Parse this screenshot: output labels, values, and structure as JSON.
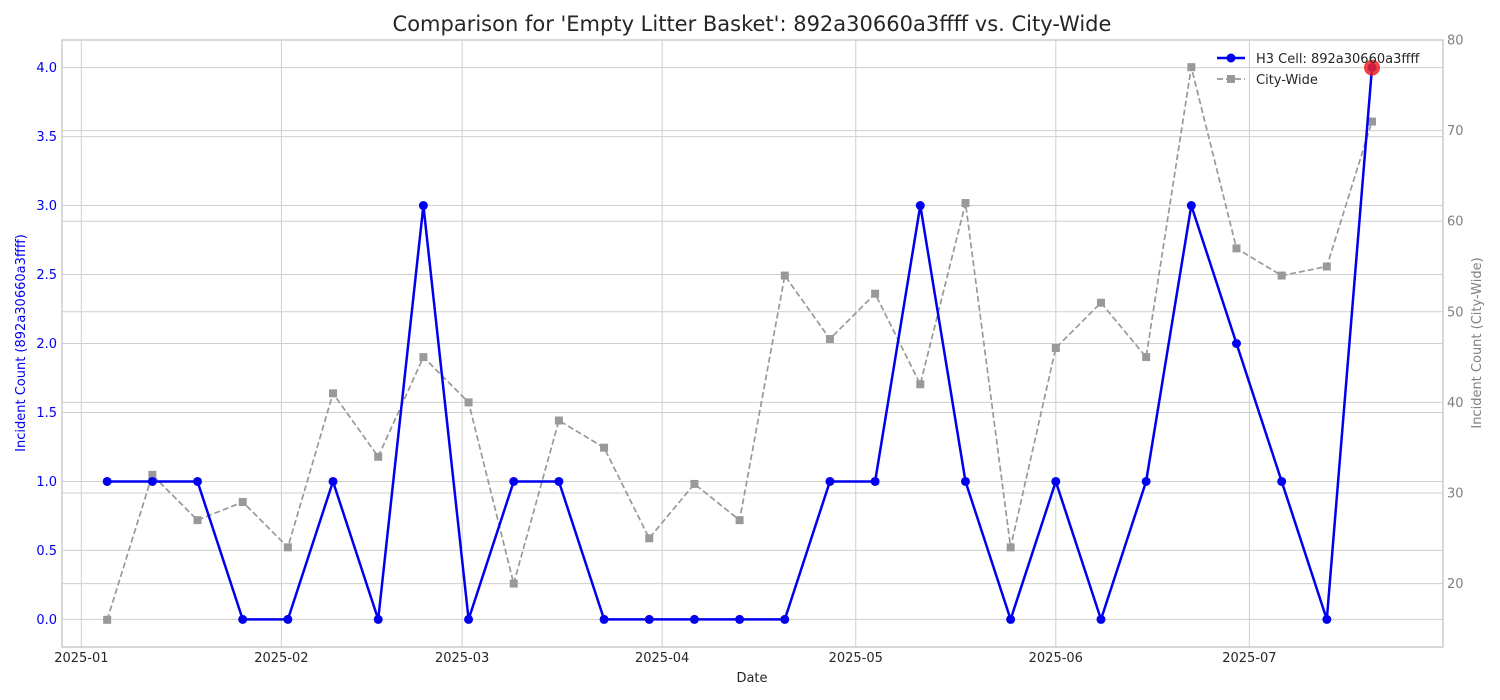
{
  "chart_data": {
    "type": "line",
    "title": "Comparison for 'Empty Litter Basket': 892a30660a3ffff vs. City-Wide",
    "xlabel": "Date",
    "ylabel_left": "Incident Count (892a30660a3ffff)",
    "ylabel_right": "Incident Count (City-Wide)",
    "x_ticks": [
      "2025-01",
      "2025-02",
      "2025-03",
      "2025-04",
      "2025-05",
      "2025-06",
      "2025-07"
    ],
    "x_range": [
      "2024-12-29",
      "2025-07-31"
    ],
    "y_left_range": [
      -0.2,
      4.2
    ],
    "y_left_ticks": [
      "0.0",
      "0.5",
      "1.0",
      "1.5",
      "2.0",
      "2.5",
      "3.0",
      "3.5",
      "4.0"
    ],
    "y_right_range": [
      13,
      80
    ],
    "y_right_ticks": [
      "20",
      "30",
      "40",
      "50",
      "60",
      "70",
      "80"
    ],
    "grid": true,
    "legend_position": "top-right",
    "x": [
      "2025-01-05",
      "2025-01-12",
      "2025-01-19",
      "2025-01-26",
      "2025-02-02",
      "2025-02-09",
      "2025-02-16",
      "2025-02-23",
      "2025-03-02",
      "2025-03-09",
      "2025-03-16",
      "2025-03-23",
      "2025-03-30",
      "2025-04-06",
      "2025-04-13",
      "2025-04-20",
      "2025-04-27",
      "2025-05-04",
      "2025-05-11",
      "2025-05-18",
      "2025-05-25",
      "2025-06-01",
      "2025-06-08",
      "2025-06-15",
      "2025-06-22",
      "2025-06-29",
      "2025-07-06",
      "2025-07-13",
      "2025-07-20"
    ],
    "series": [
      {
        "name": "H3 Cell: 892a30660a3ffff",
        "axis": "left",
        "color": "#0000ee",
        "marker": "circle",
        "values": [
          1,
          1,
          1,
          0,
          0,
          1,
          0,
          3,
          0,
          1,
          1,
          0,
          0,
          0,
          0,
          0,
          1,
          1,
          3,
          1,
          0,
          1,
          0,
          1,
          3,
          2,
          1,
          0,
          4
        ]
      },
      {
        "name": "City-Wide",
        "axis": "right",
        "color": "#999999",
        "marker": "square",
        "line_style": "dashed",
        "values": [
          16,
          32,
          27,
          29,
          24,
          41,
          34,
          45,
          40,
          20,
          38,
          35,
          25,
          31,
          27,
          54,
          47,
          52,
          42,
          62,
          24,
          46,
          51,
          45,
          77,
          57,
          54,
          55,
          71
        ]
      }
    ],
    "highlight": {
      "series": 0,
      "index": 28,
      "color": "#ee2222"
    }
  }
}
